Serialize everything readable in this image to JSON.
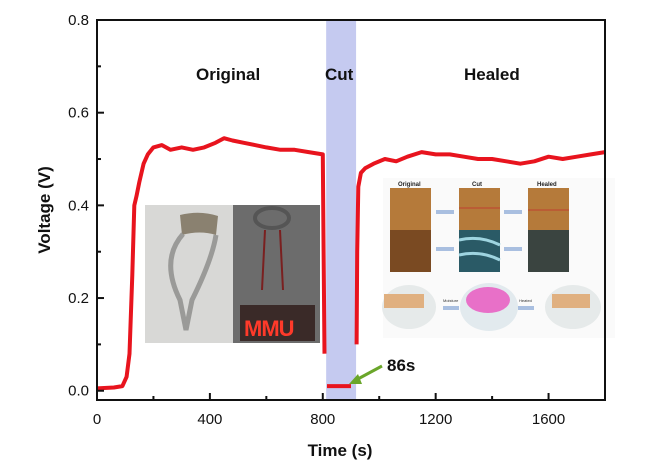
{
  "chart_data": {
    "type": "line",
    "title": "",
    "xlabel": "Time (s)",
    "ylabel": "Voltage (V)",
    "xlim": [
      0,
      1800
    ],
    "ylim": [
      -0.02,
      0.8
    ],
    "xticks": [
      0,
      400,
      800,
      1200,
      1600
    ],
    "yticks": [
      0.0,
      0.2,
      0.4,
      0.6,
      0.8
    ],
    "ytick_labels": [
      "0.0",
      "0.2",
      "0.4",
      "0.6",
      "0.8"
    ],
    "grid": false,
    "series": [
      {
        "name": "Voltage",
        "color": "#e8141e",
        "x": [
          0,
          60,
          90,
          105,
          115,
          125,
          132,
          140,
          150,
          165,
          180,
          200,
          230,
          260,
          300,
          340,
          380,
          420,
          450,
          480,
          520,
          560,
          600,
          650,
          700,
          750,
          800,
          803,
          806
        ],
        "y": [
          0.005,
          0.007,
          0.01,
          0.03,
          0.08,
          0.25,
          0.4,
          0.42,
          0.45,
          0.49,
          0.51,
          0.525,
          0.53,
          0.52,
          0.525,
          0.52,
          0.525,
          0.535,
          0.545,
          0.54,
          0.535,
          0.53,
          0.525,
          0.52,
          0.52,
          0.515,
          0.51,
          0.3,
          0.08
        ]
      },
      {
        "name": "Cut",
        "color": "#e8141e",
        "x": [
          815,
          900
        ],
        "y": [
          0.01,
          0.01
        ]
      },
      {
        "name": "Healed",
        "color": "#e8141e",
        "x": [
          920,
          922,
          926,
          935,
          950,
          980,
          1020,
          1060,
          1100,
          1150,
          1200,
          1250,
          1300,
          1350,
          1400,
          1450,
          1500,
          1550,
          1600,
          1650,
          1700,
          1750,
          1800
        ],
        "y": [
          0.1,
          0.3,
          0.44,
          0.47,
          0.48,
          0.49,
          0.5,
          0.495,
          0.505,
          0.515,
          0.51,
          0.51,
          0.505,
          0.5,
          0.5,
          0.495,
          0.49,
          0.495,
          0.505,
          0.5,
          0.505,
          0.51,
          0.515
        ]
      }
    ],
    "cut_region": {
      "x": [
        812,
        918
      ],
      "color": "#c5caf0"
    },
    "annotations": {
      "original": "Original",
      "cut": "Cut",
      "healed": "Healed",
      "duration": "86s",
      "arrow_color": "#6aa62a"
    },
    "inset_labels": {
      "original": "Original",
      "cut": "Cut",
      "healed": "Healed",
      "moisture": "Moisture",
      "healed_arrow": "Heated"
    }
  }
}
